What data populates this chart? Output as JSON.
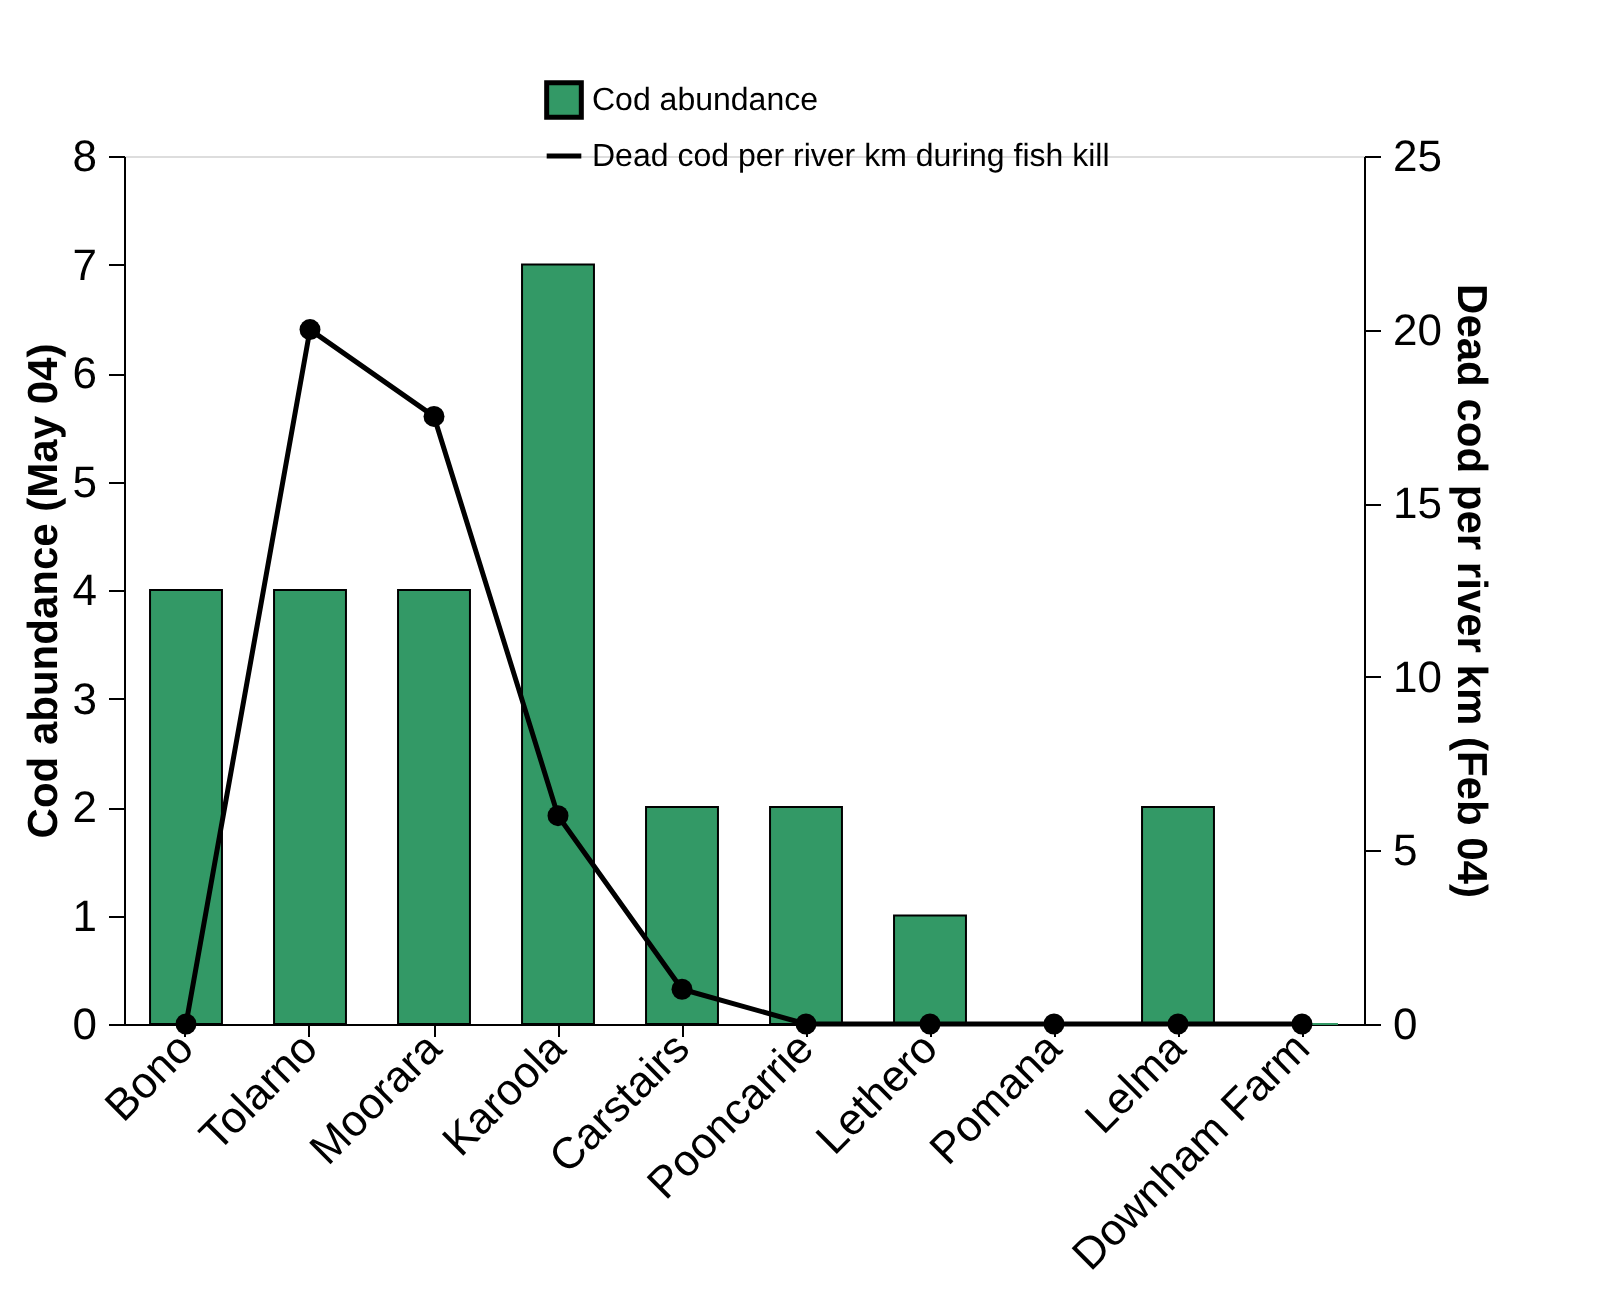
{
  "chart_data": {
    "type": "bar",
    "ylabel": "Cod abundance (May 04)",
    "y2label": "Dead cod per river km (Feb 04)",
    "categories": [
      "Bono",
      "Tolarno",
      "Moorara",
      "Karoola",
      "Carstairs",
      "Pooncarrie",
      "Lethero",
      "Pomana",
      "Lelma",
      "Downham Farm"
    ],
    "series": [
      {
        "name": "Cod abundance",
        "color": "#339966",
        "values": [
          4,
          4,
          4,
          7,
          2,
          2,
          1,
          0,
          2,
          0
        ]
      },
      {
        "name": "Dead cod per river km during fish kill",
        "type": "line",
        "axis": "y2",
        "color": "#000000",
        "values": [
          0,
          20,
          17.5,
          6,
          1,
          0,
          0,
          0,
          0,
          0
        ]
      }
    ],
    "ylim": [
      0,
      8
    ],
    "yticks": [
      0,
      1,
      2,
      3,
      4,
      5,
      6,
      7,
      8
    ],
    "y2lim": [
      0,
      25
    ],
    "y2ticks": [
      0,
      5,
      10,
      15,
      20,
      25
    ],
    "legend": "top",
    "marker": "circle",
    "grid": false
  }
}
